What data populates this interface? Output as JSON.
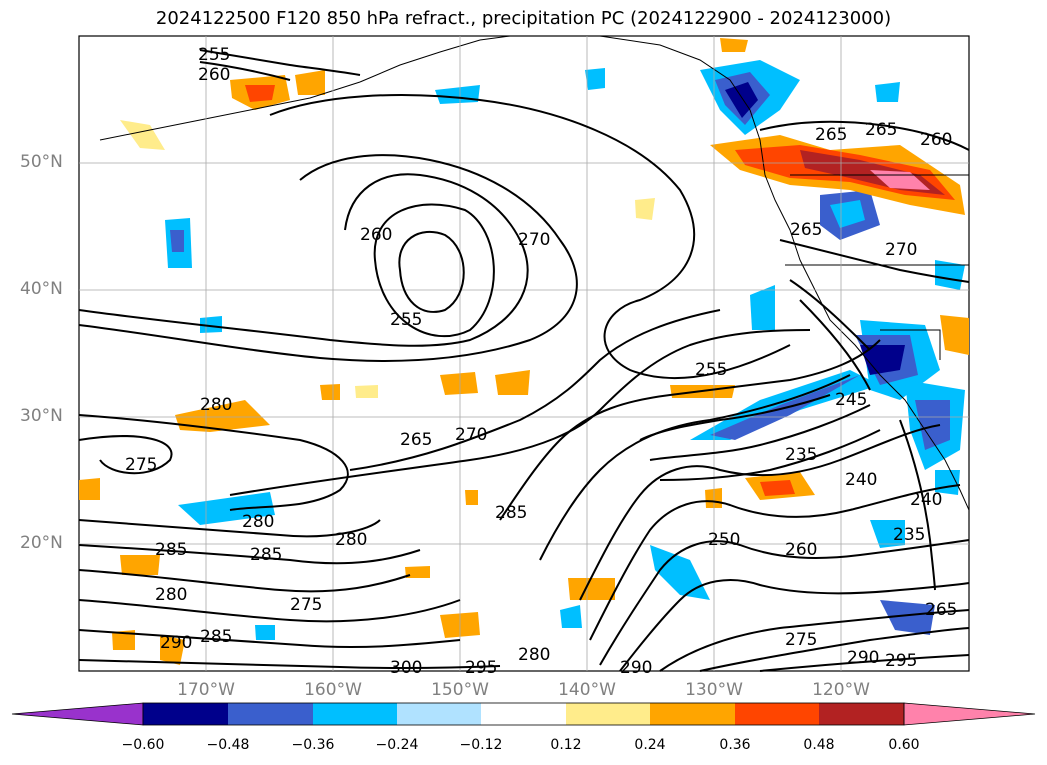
{
  "title": "2024122500 F120 850 hPa refract., precipitation PC (2024122900 - 2024123000)",
  "map": {
    "projection": "cylindrical",
    "lon_range": [
      -180,
      -110
    ],
    "lat_range": [
      10,
      60
    ],
    "grid": true,
    "lat_labels": [
      "50°N",
      "40°N",
      "30°N",
      "20°N"
    ],
    "lon_labels": [
      "170°W",
      "160°W",
      "150°W",
      "140°W",
      "130°W",
      "120°W"
    ]
  },
  "contours": {
    "field": "850 hPa refractivity",
    "color": "#000000",
    "labels": [
      "255",
      "260",
      "265",
      "265",
      "260",
      "260",
      "270",
      "255",
      "265",
      "270",
      "270",
      "265",
      "280",
      "275",
      "280",
      "285",
      "285",
      "280",
      "280",
      "285",
      "290",
      "285",
      "275",
      "300",
      "295",
      "280",
      "290",
      "255",
      "245",
      "235",
      "240",
      "240",
      "250",
      "260",
      "235",
      "265",
      "275",
      "290",
      "295"
    ]
  },
  "colorbar": {
    "ticks": [
      "−0.60",
      "−0.48",
      "−0.36",
      "−0.24",
      "−0.12",
      "0.12",
      "0.24",
      "0.36",
      "0.48",
      "0.60"
    ],
    "colors": [
      "#9932cc",
      "#00008b",
      "#3a5fcd",
      "#00bfff",
      "#b0e2ff",
      "#ffffff",
      "#ffec8b",
      "#ffa500",
      "#ff4500",
      "#b22222",
      "#ff82ab"
    ]
  }
}
